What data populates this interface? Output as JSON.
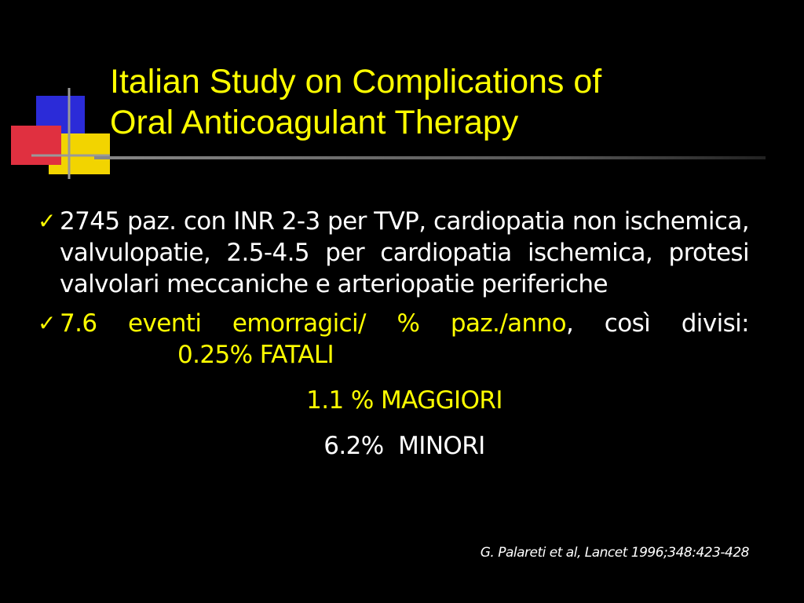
{
  "title": [
    "Italian Study on Complications of",
    "Oral Anticoagulant Therapy"
  ],
  "bullets": [
    {
      "text": "2745 paz. con INR 2-3 per TVP, cardiopatia non ischemica, valvulopatie, 2.5-4.5 per cardiopatia ischemica, protesi valvolari meccaniche e arteriopatie periferiche"
    },
    {
      "highlight": "7.6 eventi emorragici/ % paz./anno",
      "text": ", così divisi:",
      "subitems": [
        "0.25% FATALI",
        "1.1 % MAGGIORI",
        "6.2%  MINORI"
      ]
    }
  ],
  "citation": "G. Palareti et al, Lancet 1996;348:423-428"
}
